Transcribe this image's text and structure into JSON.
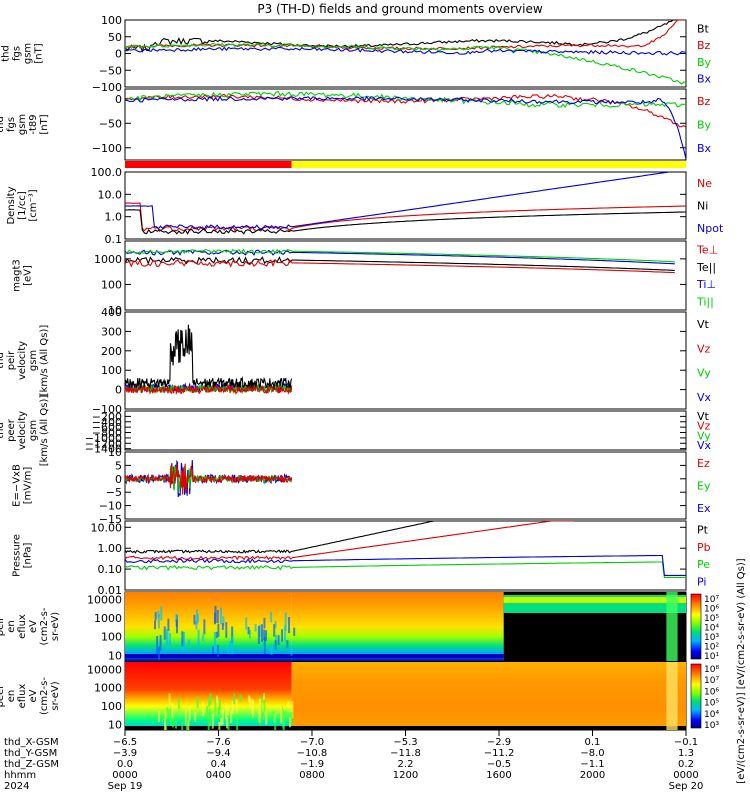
{
  "title": "P3 (TH-D) fields and ground moments overview",
  "colors": {
    "black": "#000000",
    "red": "#e00000",
    "green": "#00d000",
    "blue": "#0000e0",
    "bar_red": "#ff0000",
    "bar_yellow": "#ffff00"
  },
  "chart_data": [
    {
      "type": "line",
      "panel": "fgs-gsm",
      "ylabel_lines": [
        "thd",
        "fgs",
        "gsm",
        "[nT]"
      ],
      "ylim": [
        -100,
        100
      ],
      "yticks": [
        "100",
        "50",
        "0",
        "−50",
        "−100"
      ],
      "legend": [
        "Bt",
        "Bz",
        "By",
        "Bx"
      ],
      "legend_colors": [
        "black",
        "red",
        "green",
        "blue"
      ]
    },
    {
      "type": "line",
      "panel": "fgs-gsm-t89",
      "ylabel_lines": [
        "thd",
        "fgs",
        "gsm",
        "-t89",
        "[nT]"
      ],
      "ylim": [
        -125,
        20
      ],
      "yticks": [
        "0",
        "−50",
        "−100"
      ],
      "legend": [
        "Bz",
        "By",
        "Bx"
      ],
      "legend_colors": [
        "red",
        "green",
        "blue"
      ]
    },
    {
      "type": "bar",
      "panel": "mode-bar",
      "segments": [
        {
          "color": "bar_red",
          "x": [
            0,
            0.297
          ]
        },
        {
          "color": "bar_yellow",
          "x": [
            0.297,
            1
          ]
        }
      ]
    },
    {
      "type": "line",
      "panel": "density",
      "ylabel_lines": [
        "Density",
        "[1/cc]",
        "[cm⁻³]"
      ],
      "scale": "log",
      "ylim": [
        0.1,
        100
      ],
      "yticks": [
        "100.0",
        "10.0",
        "1.0",
        "0.1"
      ],
      "legend": [
        "Ne",
        "Ni",
        "Npot"
      ],
      "legend_colors": [
        "red",
        "black",
        "blue"
      ]
    },
    {
      "type": "line",
      "panel": "temperature",
      "ylabel_lines": [
        "magt3",
        "[eV]"
      ],
      "scale": "log",
      "ylim": [
        10,
        5000
      ],
      "yticks": [
        "1000",
        "100",
        "10"
      ],
      "legend": [
        "Te⊥",
        "Te||",
        "Ti⊥",
        "Ti||"
      ],
      "legend_colors": [
        "red",
        "black",
        "blue",
        "green"
      ]
    },
    {
      "type": "line",
      "panel": "peir-velocity",
      "ylabel_lines": [
        "thd",
        "peir",
        "velocity",
        "gsm",
        "[km/s (All Qs)]"
      ],
      "ylim": [
        -100,
        400
      ],
      "yticks": [
        "400",
        "300",
        "200",
        "100",
        "0",
        "−100"
      ],
      "legend": [
        "Vt",
        "Vz",
        "Vy",
        "Vx"
      ],
      "legend_colors": [
        "black",
        "red",
        "green",
        "blue"
      ]
    },
    {
      "type": "line",
      "panel": "peer-velocity",
      "ylabel_lines": [
        "thd",
        "peer",
        "velocity",
        "gsm",
        "[km/s (All Qs)]"
      ],
      "ylim": [
        -1450,
        0
      ],
      "yticks": [
        "−200",
        "−400",
        "−600",
        "−800",
        "−1000",
        "−1200",
        "−1400"
      ],
      "legend": [
        "Vt",
        "Vz",
        "Vy",
        "Vx"
      ],
      "legend_colors": [
        "black",
        "red",
        "green",
        "blue"
      ]
    },
    {
      "type": "line",
      "panel": "e-vxb",
      "ylabel_lines": [
        "E=−VxB",
        "[mV/m]"
      ],
      "ylim": [
        -15,
        10
      ],
      "yticks": [
        "10",
        "5",
        "0",
        "−5",
        "−10",
        "−15"
      ],
      "legend": [
        "Ez",
        "Ey",
        "Ex"
      ],
      "legend_colors": [
        "red",
        "green",
        "blue"
      ]
    },
    {
      "type": "line",
      "panel": "pressure",
      "ylabel_lines": [
        "Pressure",
        "[nPa]"
      ],
      "scale": "log",
      "ylim": [
        0.01,
        20
      ],
      "yticks": [
        "10.00",
        "1.00",
        "0.10",
        "0.01"
      ],
      "legend": [
        "Pt",
        "Pb",
        "Pe",
        "Pi"
      ],
      "legend_colors": [
        "black",
        "red",
        "green",
        "blue"
      ]
    },
    {
      "type": "heatmap",
      "panel": "peir-spectrogram",
      "ylabel_lines": [
        "thd",
        "peir",
        "en",
        "eflux",
        "eV",
        "(cm2-s-",
        "sr-eV)"
      ],
      "scale": "log",
      "ylim": [
        5,
        25000
      ],
      "yticks": [
        "10000",
        "1000",
        "100",
        "10"
      ],
      "colorbar_label": "[eV/(cm2-s-sr-eV)] [eV/(cm2-s-sr-eV) (All Qs)]",
      "colorbar_ticks": [
        "10⁷",
        "10⁶",
        "10⁵",
        "10⁴",
        "10³",
        "10²",
        "10¹"
      ]
    },
    {
      "type": "heatmap",
      "panel": "peer-spectrogram",
      "ylabel_lines": [
        "thd",
        "peer",
        "en",
        "eflux",
        "eV",
        "(cm2-s-",
        "sr-eV)"
      ],
      "scale": "log",
      "ylim": [
        5,
        25000
      ],
      "yticks": [
        "10000",
        "1000",
        "100",
        "10"
      ],
      "colorbar_ticks": [
        "10⁸",
        "10⁷",
        "10⁶",
        "10⁵",
        "10⁴",
        "10³"
      ]
    }
  ],
  "x_axis": {
    "row_labels": [
      "thd_X-GSM",
      "thd_Y-GSM",
      "thd_Z-GSM",
      "hhmm",
      "2024"
    ],
    "ticks": [
      {
        "pos": 0.0,
        "X": "−6.5",
        "Y": "−3.9",
        "Z": "0.0",
        "hhmm": "0000",
        "date": "Sep 19"
      },
      {
        "pos": 0.1667,
        "X": "−7.6",
        "Y": "−9.4",
        "Z": "0.4",
        "hhmm": "0400",
        "date": ""
      },
      {
        "pos": 0.3333,
        "X": "−7.0",
        "Y": "−10.8",
        "Z": "−1.9",
        "hhmm": "0800",
        "date": ""
      },
      {
        "pos": 0.5,
        "X": "−5.3",
        "Y": "−11.8",
        "Z": "2.2",
        "hhmm": "1200",
        "date": ""
      },
      {
        "pos": 0.6667,
        "X": "−2.9",
        "Y": "−11.2",
        "Z": "−0.5",
        "hhmm": "1600",
        "date": ""
      },
      {
        "pos": 0.8333,
        "X": "0.1",
        "Y": "−8.0",
        "Z": "−1.1",
        "hhmm": "2000",
        "date": ""
      },
      {
        "pos": 1.0,
        "X": "−0.1",
        "Y": "1.3",
        "Z": "0.2",
        "hhmm": "0000",
        "date": "Sep 20"
      }
    ]
  }
}
